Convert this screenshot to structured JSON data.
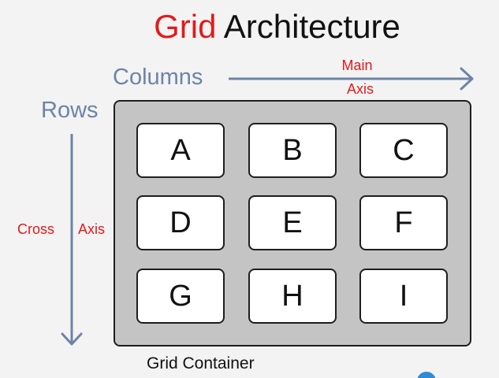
{
  "title": {
    "accent": "Grid",
    "rest": " Architecture"
  },
  "labels": {
    "columns": "Columns",
    "rows": "Rows",
    "main_axis_line1": "Main",
    "main_axis_line2": "Axis",
    "cross_axis_word1": "Cross",
    "cross_axis_word2": "Axis",
    "container": "Grid Container"
  },
  "grid": {
    "cells": [
      "A",
      "B",
      "C",
      "D",
      "E",
      "F",
      "G",
      "H",
      "I"
    ]
  },
  "colors": {
    "accent": "#e21b1b",
    "axis": "#6d84a6",
    "container_fill": "#c4c4c4",
    "cell_fill": "#ffffff",
    "outline": "#1e1e1e",
    "background": "#f3f3f3"
  }
}
